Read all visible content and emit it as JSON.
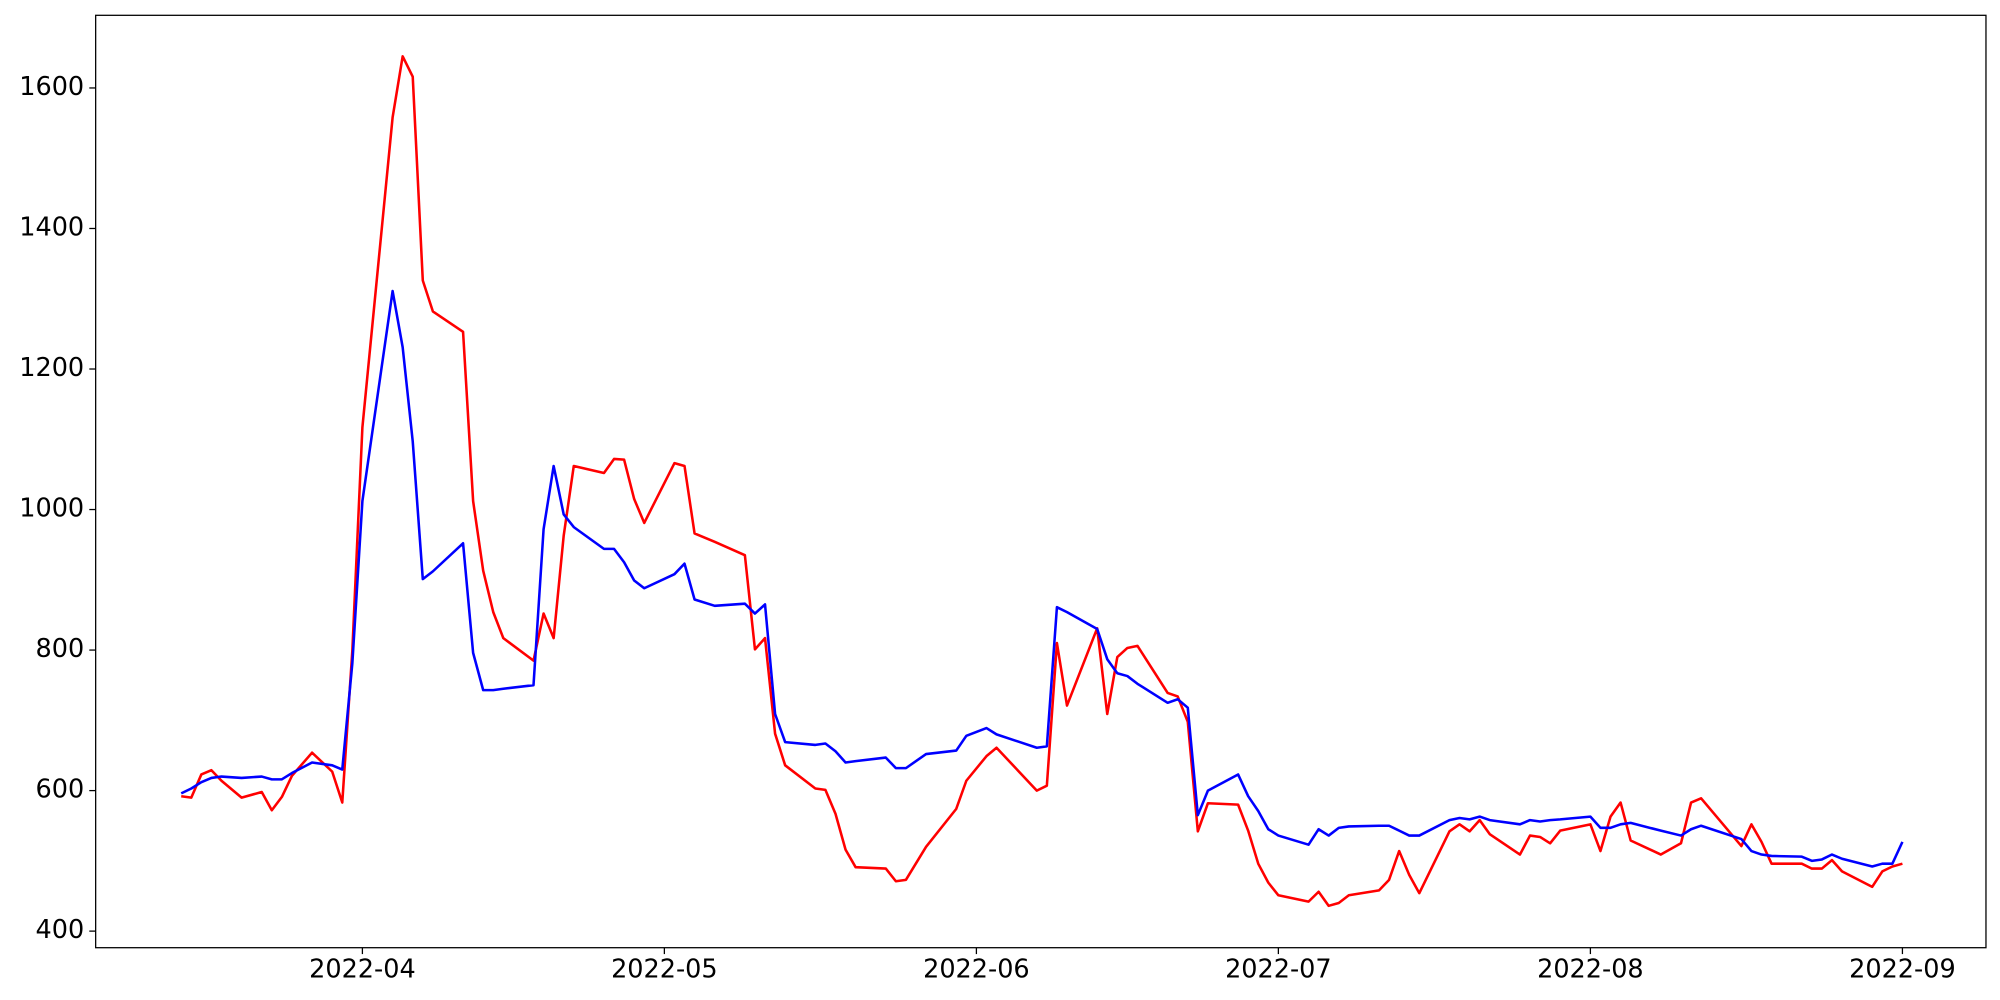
{
  "chart_data": {
    "type": "line",
    "x": [
      72,
      73,
      74,
      75,
      76,
      78,
      80,
      81,
      82,
      83,
      85,
      87,
      88,
      89,
      90,
      93,
      94,
      95,
      96,
      97,
      100,
      101,
      102,
      103,
      104,
      107,
      108,
      109,
      110,
      111,
      114,
      115,
      116,
      117,
      118,
      121,
      122,
      123,
      125,
      128,
      129,
      130,
      131,
      132,
      135,
      136,
      137,
      138,
      139,
      142,
      143,
      144,
      146,
      149,
      150,
      152,
      153,
      157,
      158,
      159,
      160,
      163,
      164,
      165,
      166,
      167,
      170,
      171,
      172,
      173,
      174,
      177,
      178,
      179,
      180,
      181,
      184,
      185,
      186,
      187,
      188,
      191,
      192,
      193,
      194,
      195,
      198,
      199,
      200,
      201,
      202,
      205,
      206,
      207,
      208,
      209,
      212,
      213,
      214,
      215,
      216,
      219,
      221,
      222,
      223,
      227,
      228,
      229,
      230,
      233,
      234,
      235,
      236,
      237,
      240,
      241,
      242,
      243
    ],
    "series": [
      {
        "color": "#ff0000",
        "values": [
          592,
          590,
          623,
          629,
          614,
          590,
          598,
          572,
          591,
          621,
          654,
          627,
          583,
          799,
          1117,
          1558,
          1645,
          1616,
          1326,
          1282,
          1253,
          1012,
          913,
          854,
          817,
          785,
          852,
          817,
          963,
          1062,
          1052,
          1072,
          1071,
          1015,
          981,
          1066,
          1062,
          966,
          954,
          935,
          801,
          817,
          681,
          636,
          603,
          601,
          567,
          516,
          491,
          489,
          471,
          473,
          520,
          574,
          614,
          649,
          661,
          600,
          607,
          810,
          721,
          831,
          709,
          790,
          803,
          806,
          739,
          734,
          698,
          542,
          582,
          580,
          543,
          496,
          469,
          451,
          442,
          456,
          436,
          440,
          451,
          458,
          473,
          514,
          480,
          454,
          542,
          552,
          542,
          558,
          538,
          509,
          536,
          534,
          525,
          543,
          552,
          514,
          563,
          583,
          529,
          509,
          525,
          583,
          589,
          521,
          552,
          527,
          496,
          496,
          489,
          489,
          501,
          485,
          463,
          485,
          492,
          496
        ]
      },
      {
        "color": "#0000ff",
        "values": [
          596,
          603,
          612,
          618,
          620,
          618,
          620,
          616,
          616,
          625,
          640,
          636,
          630,
          781,
          1012,
          1311,
          1231,
          1097,
          901,
          912,
          952,
          796,
          743,
          743,
          745,
          750,
          972,
          1062,
          993,
          975,
          944,
          944,
          925,
          899,
          888,
          908,
          923,
          872,
          863,
          866,
          852,
          865,
          709,
          669,
          665,
          667,
          656,
          640,
          642,
          647,
          632,
          632,
          652,
          657,
          678,
          689,
          680,
          661,
          663,
          861,
          854,
          830,
          787,
          767,
          763,
          752,
          725,
          730,
          718,
          565,
          600,
          623,
          592,
          571,
          545,
          536,
          523,
          545,
          536,
          547,
          549,
          550,
          550,
          543,
          536,
          536,
          558,
          561,
          559,
          563,
          558,
          552,
          558,
          556,
          558,
          559,
          563,
          547,
          547,
          552,
          554,
          543,
          536,
          545,
          550,
          531,
          514,
          509,
          507,
          506,
          500,
          502,
          509,
          503,
          492,
          496,
          496,
          527
        ]
      }
    ],
    "xlim": [
      63.5,
      251.3
    ],
    "xticks": [
      {
        "value": 90,
        "label": "2022-04"
      },
      {
        "value": 120,
        "label": "2022-05"
      },
      {
        "value": 151,
        "label": "2022-06"
      },
      {
        "value": 181,
        "label": "2022-07"
      },
      {
        "value": 212,
        "label": "2022-08"
      },
      {
        "value": 243,
        "label": "2022-09"
      }
    ],
    "ylim": [
      376.4,
      1703.4
    ],
    "yticks": [
      400,
      600,
      800,
      1000,
      1200,
      1400,
      1600
    ],
    "grid": false
  }
}
